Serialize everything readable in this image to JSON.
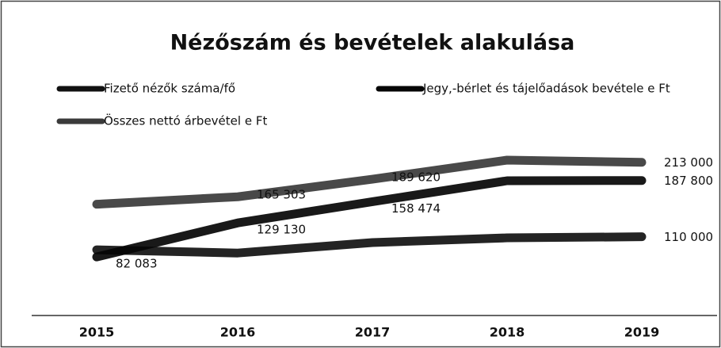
{
  "chart_data": {
    "type": "line",
    "title": "Nézőszám és bevételek alakulása",
    "categories": [
      "2015",
      "2016",
      "2017",
      "2018",
      "2019"
    ],
    "series": [
      {
        "name": "Fizető nézők száma/fő",
        "color": "#111111",
        "values": [
          92000,
          87507,
          102000,
          108500,
          110000
        ],
        "value_labels": [
          null,
          null,
          null,
          null,
          "110 000"
        ]
      },
      {
        "name": "Jegy,-bérlet és tájelőadások bevétele e Ft",
        "color": "#050505",
        "values": [
          82083,
          129130,
          158474,
          187500,
          187800
        ],
        "value_labels": [
          "82 083",
          "129 130",
          "158 474",
          null,
          "187 800"
        ]
      },
      {
        "name": "Összes nettó árbevétel e Ft",
        "color": "#3a3a3a",
        "values": [
          155000,
          165303,
          189620,
          216000,
          213000
        ],
        "value_labels": [
          null,
          "165 303",
          "189 620",
          null,
          "213 000"
        ]
      }
    ],
    "ylim": [
      0,
      250000
    ],
    "legend": "top"
  }
}
